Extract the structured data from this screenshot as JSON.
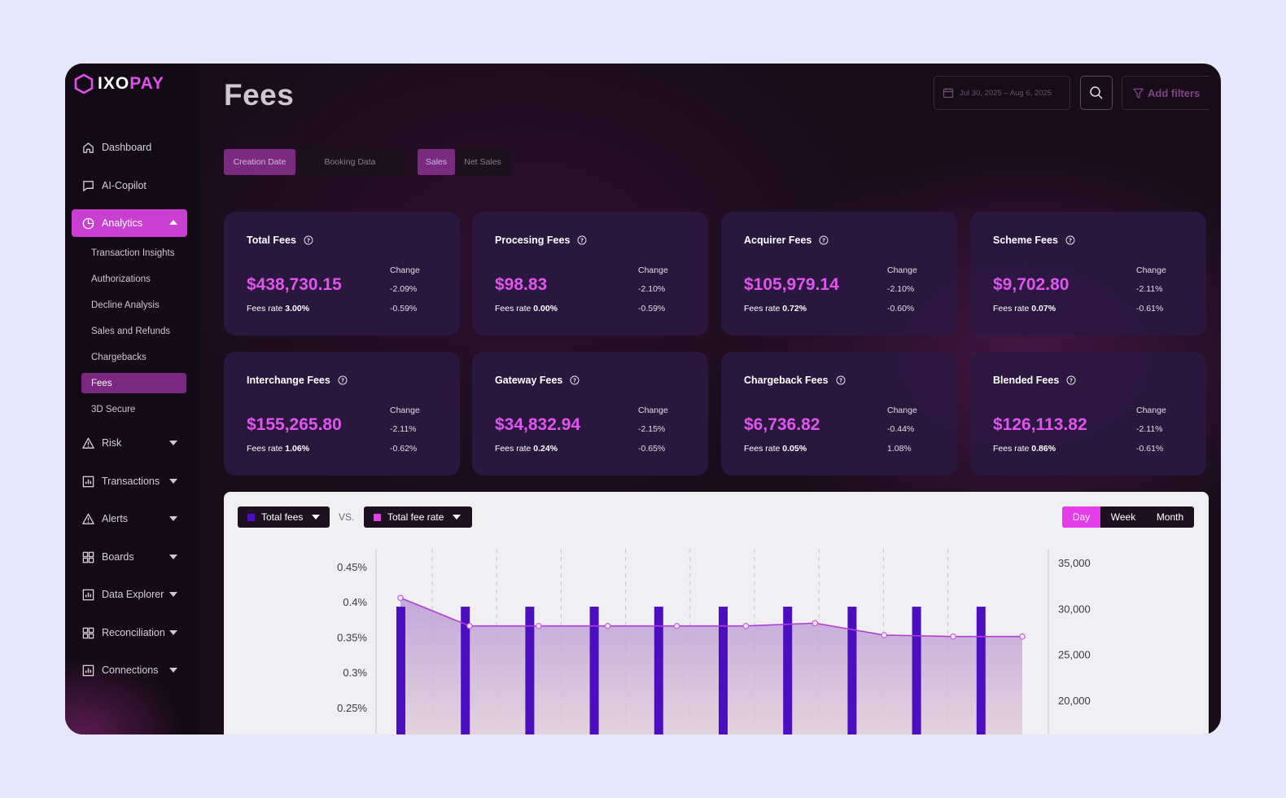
{
  "brand": {
    "name_a": "IXO",
    "name_b": "PAY",
    "accent": "#e24fe8"
  },
  "nav": {
    "items": [
      {
        "label": "Dashboard",
        "icon": "home-icon"
      },
      {
        "label": "AI-Copilot",
        "icon": "chat-icon"
      },
      {
        "label": "Analytics",
        "icon": "pie-chart-icon",
        "active": true,
        "expanded": true
      },
      {
        "label": "Risk",
        "icon": "warning-icon"
      },
      {
        "label": "Transactions",
        "icon": "bar-chart-icon"
      },
      {
        "label": "Alerts",
        "icon": "warning-icon"
      },
      {
        "label": "Boards",
        "icon": "grid-icon"
      },
      {
        "label": "Data Explorer",
        "icon": "bar-chart-icon"
      },
      {
        "label": "Reconciliation",
        "icon": "grid-icon"
      },
      {
        "label": "Connections",
        "icon": "bar-chart-icon"
      }
    ],
    "analytics_sub": [
      {
        "label": "Transaction Insights"
      },
      {
        "label": "Authorizations"
      },
      {
        "label": "Decline Analysis"
      },
      {
        "label": "Sales and Refunds"
      },
      {
        "label": "Chargebacks"
      },
      {
        "label": "Fees",
        "active": true
      },
      {
        "label": "3D Secure"
      }
    ]
  },
  "header": {
    "title": "Fees",
    "date_range": "Jul 30, 2025 – Aug 6, 2025",
    "add_filters": "Add filters"
  },
  "toggles": {
    "date_basis": [
      {
        "label": "Creation Date",
        "selected": true
      },
      {
        "label": "Booking Data",
        "selected": false
      }
    ],
    "sales_basis": [
      {
        "label": "Sales",
        "selected": true
      },
      {
        "label": "Net Sales",
        "selected": false
      }
    ]
  },
  "cards": [
    {
      "title": "Total Fees",
      "value": "$438,730.15",
      "rate_label": "Fees rate",
      "rate": "3.00%",
      "change_label": "Change",
      "change_1": "-2.09%",
      "change_2": "-0.59%"
    },
    {
      "title": "Procesing Fees",
      "value": "$98.83",
      "rate_label": "Fees rate",
      "rate": "0.00%",
      "change_label": "Change",
      "change_1": "-2.10%",
      "change_2": "-0.59%"
    },
    {
      "title": "Acquirer Fees",
      "value": "$105,979.14",
      "rate_label": "Fees rate",
      "rate": "0.72%",
      "change_label": "Change",
      "change_1": "-2.10%",
      "change_2": "-0.60%"
    },
    {
      "title": "Scheme Fees",
      "value": "$9,702.80",
      "rate_label": "Fees rate",
      "rate": "0.07%",
      "change_label": "Change",
      "change_1": "-2.11%",
      "change_2": "-0.61%"
    },
    {
      "title": "Interchange Fees",
      "value": "$155,265.80",
      "rate_label": "Fees rate",
      "rate": "1.06%",
      "change_label": "Change",
      "change_1": "-2.11%",
      "change_2": "-0.62%"
    },
    {
      "title": "Gateway Fees",
      "value": "$34,832.94",
      "rate_label": "Fees rate",
      "rate": "0.24%",
      "change_label": "Change",
      "change_1": "-2.15%",
      "change_2": "-0.65%"
    },
    {
      "title": "Chargeback Fees",
      "value": "$6,736.82",
      "rate_label": "Fees rate",
      "rate": "0.05%",
      "change_label": "Change",
      "change_1": "-0.44%",
      "change_2": "1.08%"
    },
    {
      "title": "Blended Fees",
      "value": "$126,113.82",
      "rate_label": "Fees rate",
      "rate": "0.86%",
      "change_label": "Change",
      "change_1": "-2.11%",
      "change_2": "-0.61%"
    }
  ],
  "chart_controls": {
    "primary_metric": "Total fees",
    "vs": "VS.",
    "secondary_metric": "Total fee rate",
    "periods": [
      {
        "label": "Day",
        "selected": true
      },
      {
        "label": "Week"
      },
      {
        "label": "Month"
      }
    ]
  },
  "chart_data": {
    "type": "bar",
    "series": [
      {
        "name": "Total fees",
        "type": "bar",
        "axis": "right",
        "color": "#4b0fbf",
        "values": [
          30200,
          30200,
          30200,
          30200,
          30200,
          30200,
          30200,
          30200,
          30200,
          30200
        ]
      },
      {
        "name": "Total fee rate",
        "type": "area",
        "axis": "left",
        "color": "#b53cd9",
        "values": [
          0.407,
          0.367,
          0.367,
          0.367,
          0.367,
          0.367,
          0.371,
          0.354,
          0.352,
          0.352
        ]
      }
    ],
    "left_axis": {
      "ticks": [
        "0.45%",
        "0.4%",
        "0.35%",
        "0.3%",
        "0.25%"
      ],
      "tick_values": [
        0.45,
        0.4,
        0.35,
        0.3,
        0.25
      ]
    },
    "right_axis": {
      "ticks": [
        "35,000",
        "30,000",
        "25,000",
        "20,000"
      ],
      "tick_values": [
        35000,
        30000,
        25000,
        20000
      ]
    },
    "grid": "vertical-dashed"
  }
}
